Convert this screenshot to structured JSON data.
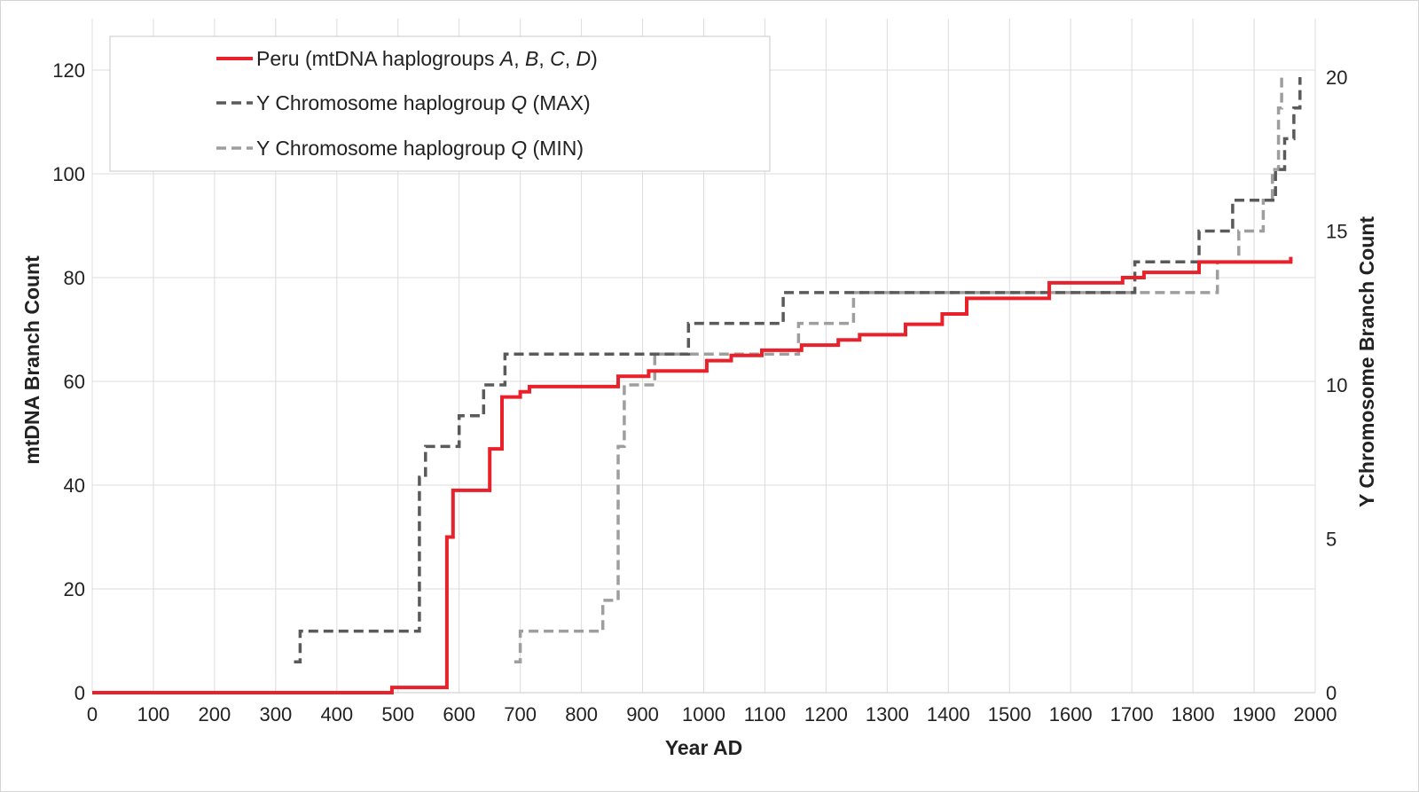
{
  "chart_data": {
    "type": "line",
    "title": "",
    "xlabel": "Year AD",
    "ylabel_left": "mtDNA Branch Count",
    "ylabel_right": "Y Chromosome  Branch Count",
    "xlim": [
      0,
      2000
    ],
    "ylim_left": [
      0,
      120
    ],
    "ylim_right": [
      0,
      20
    ],
    "x_ticks": [
      0,
      100,
      200,
      300,
      400,
      500,
      600,
      700,
      800,
      900,
      1000,
      1100,
      1200,
      1300,
      1400,
      1500,
      1600,
      1700,
      1800,
      1900,
      2000
    ],
    "y_left_ticks": [
      0,
      20,
      40,
      60,
      80,
      100,
      120
    ],
    "y_right_ticks": [
      0,
      5,
      10,
      15,
      20
    ],
    "grid": true,
    "legend_position": "top-left",
    "colors": {
      "peru": "#e8212a",
      "ymax": "#5a5a5a",
      "ymin": "#9e9e9e",
      "grid": "#dcdcdc"
    },
    "series": [
      {
        "name_parts": [
          {
            "text": "Peru (mtDNA haplogroups ",
            "italic": false
          },
          {
            "text": "A",
            "italic": true
          },
          {
            "text": ", ",
            "italic": false
          },
          {
            "text": "B",
            "italic": true
          },
          {
            "text": ", ",
            "italic": false
          },
          {
            "text": "C",
            "italic": true
          },
          {
            "text": ", ",
            "italic": false
          },
          {
            "text": "D",
            "italic": true
          },
          {
            "text": ")",
            "italic": false
          }
        ],
        "axis": "left",
        "style": "solid",
        "color": "#e8212a",
        "points": [
          [
            0,
            0
          ],
          [
            490,
            0
          ],
          [
            490,
            1
          ],
          [
            580,
            1
          ],
          [
            580,
            30
          ],
          [
            590,
            30
          ],
          [
            590,
            39
          ],
          [
            650,
            39
          ],
          [
            650,
            47
          ],
          [
            670,
            47
          ],
          [
            670,
            57
          ],
          [
            700,
            57
          ],
          [
            700,
            58
          ],
          [
            715,
            58
          ],
          [
            715,
            59
          ],
          [
            860,
            59
          ],
          [
            860,
            61
          ],
          [
            910,
            61
          ],
          [
            910,
            62
          ],
          [
            1005,
            62
          ],
          [
            1005,
            64
          ],
          [
            1045,
            64
          ],
          [
            1045,
            65
          ],
          [
            1095,
            65
          ],
          [
            1095,
            66
          ],
          [
            1160,
            66
          ],
          [
            1160,
            67
          ],
          [
            1220,
            67
          ],
          [
            1220,
            68
          ],
          [
            1255,
            68
          ],
          [
            1255,
            69
          ],
          [
            1330,
            69
          ],
          [
            1330,
            71
          ],
          [
            1390,
            71
          ],
          [
            1390,
            73
          ],
          [
            1430,
            73
          ],
          [
            1430,
            76
          ],
          [
            1565,
            76
          ],
          [
            1565,
            79
          ],
          [
            1685,
            79
          ],
          [
            1685,
            80
          ],
          [
            1720,
            80
          ],
          [
            1720,
            81
          ],
          [
            1810,
            81
          ],
          [
            1810,
            83
          ],
          [
            1960,
            83
          ],
          [
            1960,
            84
          ]
        ]
      },
      {
        "name_parts": [
          {
            "text": "Y Chromosome haplogroup ",
            "italic": false
          },
          {
            "text": "Q",
            "italic": true
          },
          {
            "text": " (MAX)",
            "italic": false
          }
        ],
        "axis": "right",
        "style": "dashed",
        "color": "#5a5a5a",
        "points": [
          [
            330,
            1
          ],
          [
            340,
            1
          ],
          [
            340,
            2
          ],
          [
            535,
            2
          ],
          [
            535,
            7
          ],
          [
            545,
            7
          ],
          [
            545,
            8
          ],
          [
            600,
            8
          ],
          [
            600,
            9
          ],
          [
            640,
            9
          ],
          [
            640,
            10
          ],
          [
            675,
            10
          ],
          [
            675,
            11
          ],
          [
            975,
            11
          ],
          [
            975,
            12
          ],
          [
            1130,
            12
          ],
          [
            1130,
            13
          ],
          [
            1705,
            13
          ],
          [
            1705,
            14
          ],
          [
            1810,
            14
          ],
          [
            1810,
            15
          ],
          [
            1865,
            15
          ],
          [
            1865,
            16
          ],
          [
            1935,
            16
          ],
          [
            1935,
            17
          ],
          [
            1950,
            17
          ],
          [
            1950,
            18
          ],
          [
            1965,
            18
          ],
          [
            1965,
            19
          ],
          [
            1975,
            19
          ],
          [
            1975,
            20
          ]
        ]
      },
      {
        "name_parts": [
          {
            "text": "Y Chromosome haplogroup ",
            "italic": false
          },
          {
            "text": "Q",
            "italic": true
          },
          {
            "text": " (MIN)",
            "italic": false
          }
        ],
        "axis": "right",
        "style": "dashed",
        "color": "#9e9e9e",
        "points": [
          [
            690,
            1
          ],
          [
            700,
            1
          ],
          [
            700,
            2
          ],
          [
            835,
            2
          ],
          [
            835,
            3
          ],
          [
            860,
            3
          ],
          [
            860,
            8
          ],
          [
            870,
            8
          ],
          [
            870,
            10
          ],
          [
            920,
            10
          ],
          [
            920,
            11
          ],
          [
            1155,
            11
          ],
          [
            1155,
            12
          ],
          [
            1245,
            12
          ],
          [
            1245,
            13
          ],
          [
            1840,
            13
          ],
          [
            1840,
            14
          ],
          [
            1875,
            14
          ],
          [
            1875,
            15
          ],
          [
            1915,
            15
          ],
          [
            1915,
            16
          ],
          [
            1930,
            16
          ],
          [
            1930,
            17
          ],
          [
            1940,
            17
          ],
          [
            1940,
            19
          ],
          [
            1945,
            19
          ],
          [
            1945,
            20
          ]
        ]
      }
    ]
  }
}
